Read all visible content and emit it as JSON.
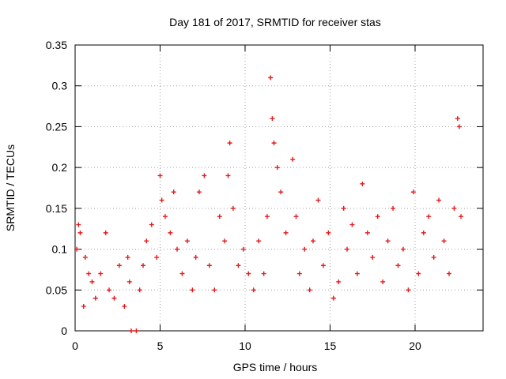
{
  "chart_data": {
    "type": "scatter",
    "title": "Day 181 of 2017, SRMTID for receiver stas",
    "xlabel": "GPS time / hours",
    "ylabel": "SRMTID / TECUs",
    "xlim": [
      0,
      24
    ],
    "ylim": [
      0,
      0.35
    ],
    "xticks": [
      0,
      5,
      10,
      15,
      20
    ],
    "xtick_labels": [
      "0",
      "5",
      "10",
      "15",
      "20"
    ],
    "yticks": [
      0,
      0.05,
      0.1,
      0.15,
      0.2,
      0.25,
      0.3,
      0.35
    ],
    "ytick_labels": [
      "0",
      "0.05",
      "0.1",
      "0.15",
      "0.2",
      "0.25",
      "0.3",
      "0.35"
    ],
    "grid": true,
    "marker": "plus",
    "color": "#e41a1c",
    "series": [
      {
        "name": "SRMTID",
        "points": [
          [
            0.1,
            0.1
          ],
          [
            0.2,
            0.13
          ],
          [
            0.3,
            0.12
          ],
          [
            0.5,
            0.03
          ],
          [
            0.6,
            0.09
          ],
          [
            0.8,
            0.07
          ],
          [
            1.0,
            0.06
          ],
          [
            1.2,
            0.04
          ],
          [
            1.5,
            0.07
          ],
          [
            1.8,
            0.12
          ],
          [
            2.0,
            0.05
          ],
          [
            2.3,
            0.04
          ],
          [
            2.6,
            0.08
          ],
          [
            2.9,
            0.03
          ],
          [
            3.1,
            0.09
          ],
          [
            3.2,
            0.06
          ],
          [
            3.3,
            0.0
          ],
          [
            3.6,
            0.0
          ],
          [
            3.8,
            0.05
          ],
          [
            4.0,
            0.08
          ],
          [
            4.2,
            0.11
          ],
          [
            4.5,
            0.13
          ],
          [
            4.8,
            0.09
          ],
          [
            5.0,
            0.19
          ],
          [
            5.1,
            0.16
          ],
          [
            5.3,
            0.14
          ],
          [
            5.6,
            0.12
          ],
          [
            5.8,
            0.17
          ],
          [
            6.0,
            0.1
          ],
          [
            6.3,
            0.07
          ],
          [
            6.6,
            0.11
          ],
          [
            6.9,
            0.05
          ],
          [
            7.1,
            0.09
          ],
          [
            7.3,
            0.17
          ],
          [
            7.6,
            0.19
          ],
          [
            7.9,
            0.08
          ],
          [
            8.2,
            0.05
          ],
          [
            8.5,
            0.14
          ],
          [
            8.8,
            0.11
          ],
          [
            9.0,
            0.19
          ],
          [
            9.1,
            0.23
          ],
          [
            9.3,
            0.15
          ],
          [
            9.6,
            0.08
          ],
          [
            9.9,
            0.1
          ],
          [
            10.2,
            0.07
          ],
          [
            10.5,
            0.05
          ],
          [
            10.8,
            0.11
          ],
          [
            11.1,
            0.07
          ],
          [
            11.3,
            0.14
          ],
          [
            11.5,
            0.31
          ],
          [
            11.6,
            0.26
          ],
          [
            11.7,
            0.23
          ],
          [
            11.9,
            0.2
          ],
          [
            12.1,
            0.17
          ],
          [
            12.4,
            0.12
          ],
          [
            12.8,
            0.21
          ],
          [
            13.0,
            0.14
          ],
          [
            13.2,
            0.07
          ],
          [
            13.5,
            0.1
          ],
          [
            13.8,
            0.05
          ],
          [
            14.0,
            0.11
          ],
          [
            14.3,
            0.16
          ],
          [
            14.6,
            0.08
          ],
          [
            14.9,
            0.12
          ],
          [
            15.2,
            0.04
          ],
          [
            15.5,
            0.06
          ],
          [
            15.8,
            0.15
          ],
          [
            16.0,
            0.1
          ],
          [
            16.3,
            0.13
          ],
          [
            16.6,
            0.07
          ],
          [
            16.9,
            0.18
          ],
          [
            17.2,
            0.12
          ],
          [
            17.5,
            0.09
          ],
          [
            17.8,
            0.14
          ],
          [
            18.1,
            0.06
          ],
          [
            18.4,
            0.11
          ],
          [
            18.7,
            0.15
          ],
          [
            19.0,
            0.08
          ],
          [
            19.3,
            0.1
          ],
          [
            19.6,
            0.05
          ],
          [
            19.9,
            0.17
          ],
          [
            20.2,
            0.07
          ],
          [
            20.5,
            0.12
          ],
          [
            20.8,
            0.14
          ],
          [
            21.1,
            0.09
          ],
          [
            21.4,
            0.16
          ],
          [
            21.7,
            0.11
          ],
          [
            22.0,
            0.07
          ],
          [
            22.3,
            0.15
          ],
          [
            22.5,
            0.26
          ],
          [
            22.6,
            0.25
          ],
          [
            22.7,
            0.14
          ]
        ]
      }
    ]
  }
}
